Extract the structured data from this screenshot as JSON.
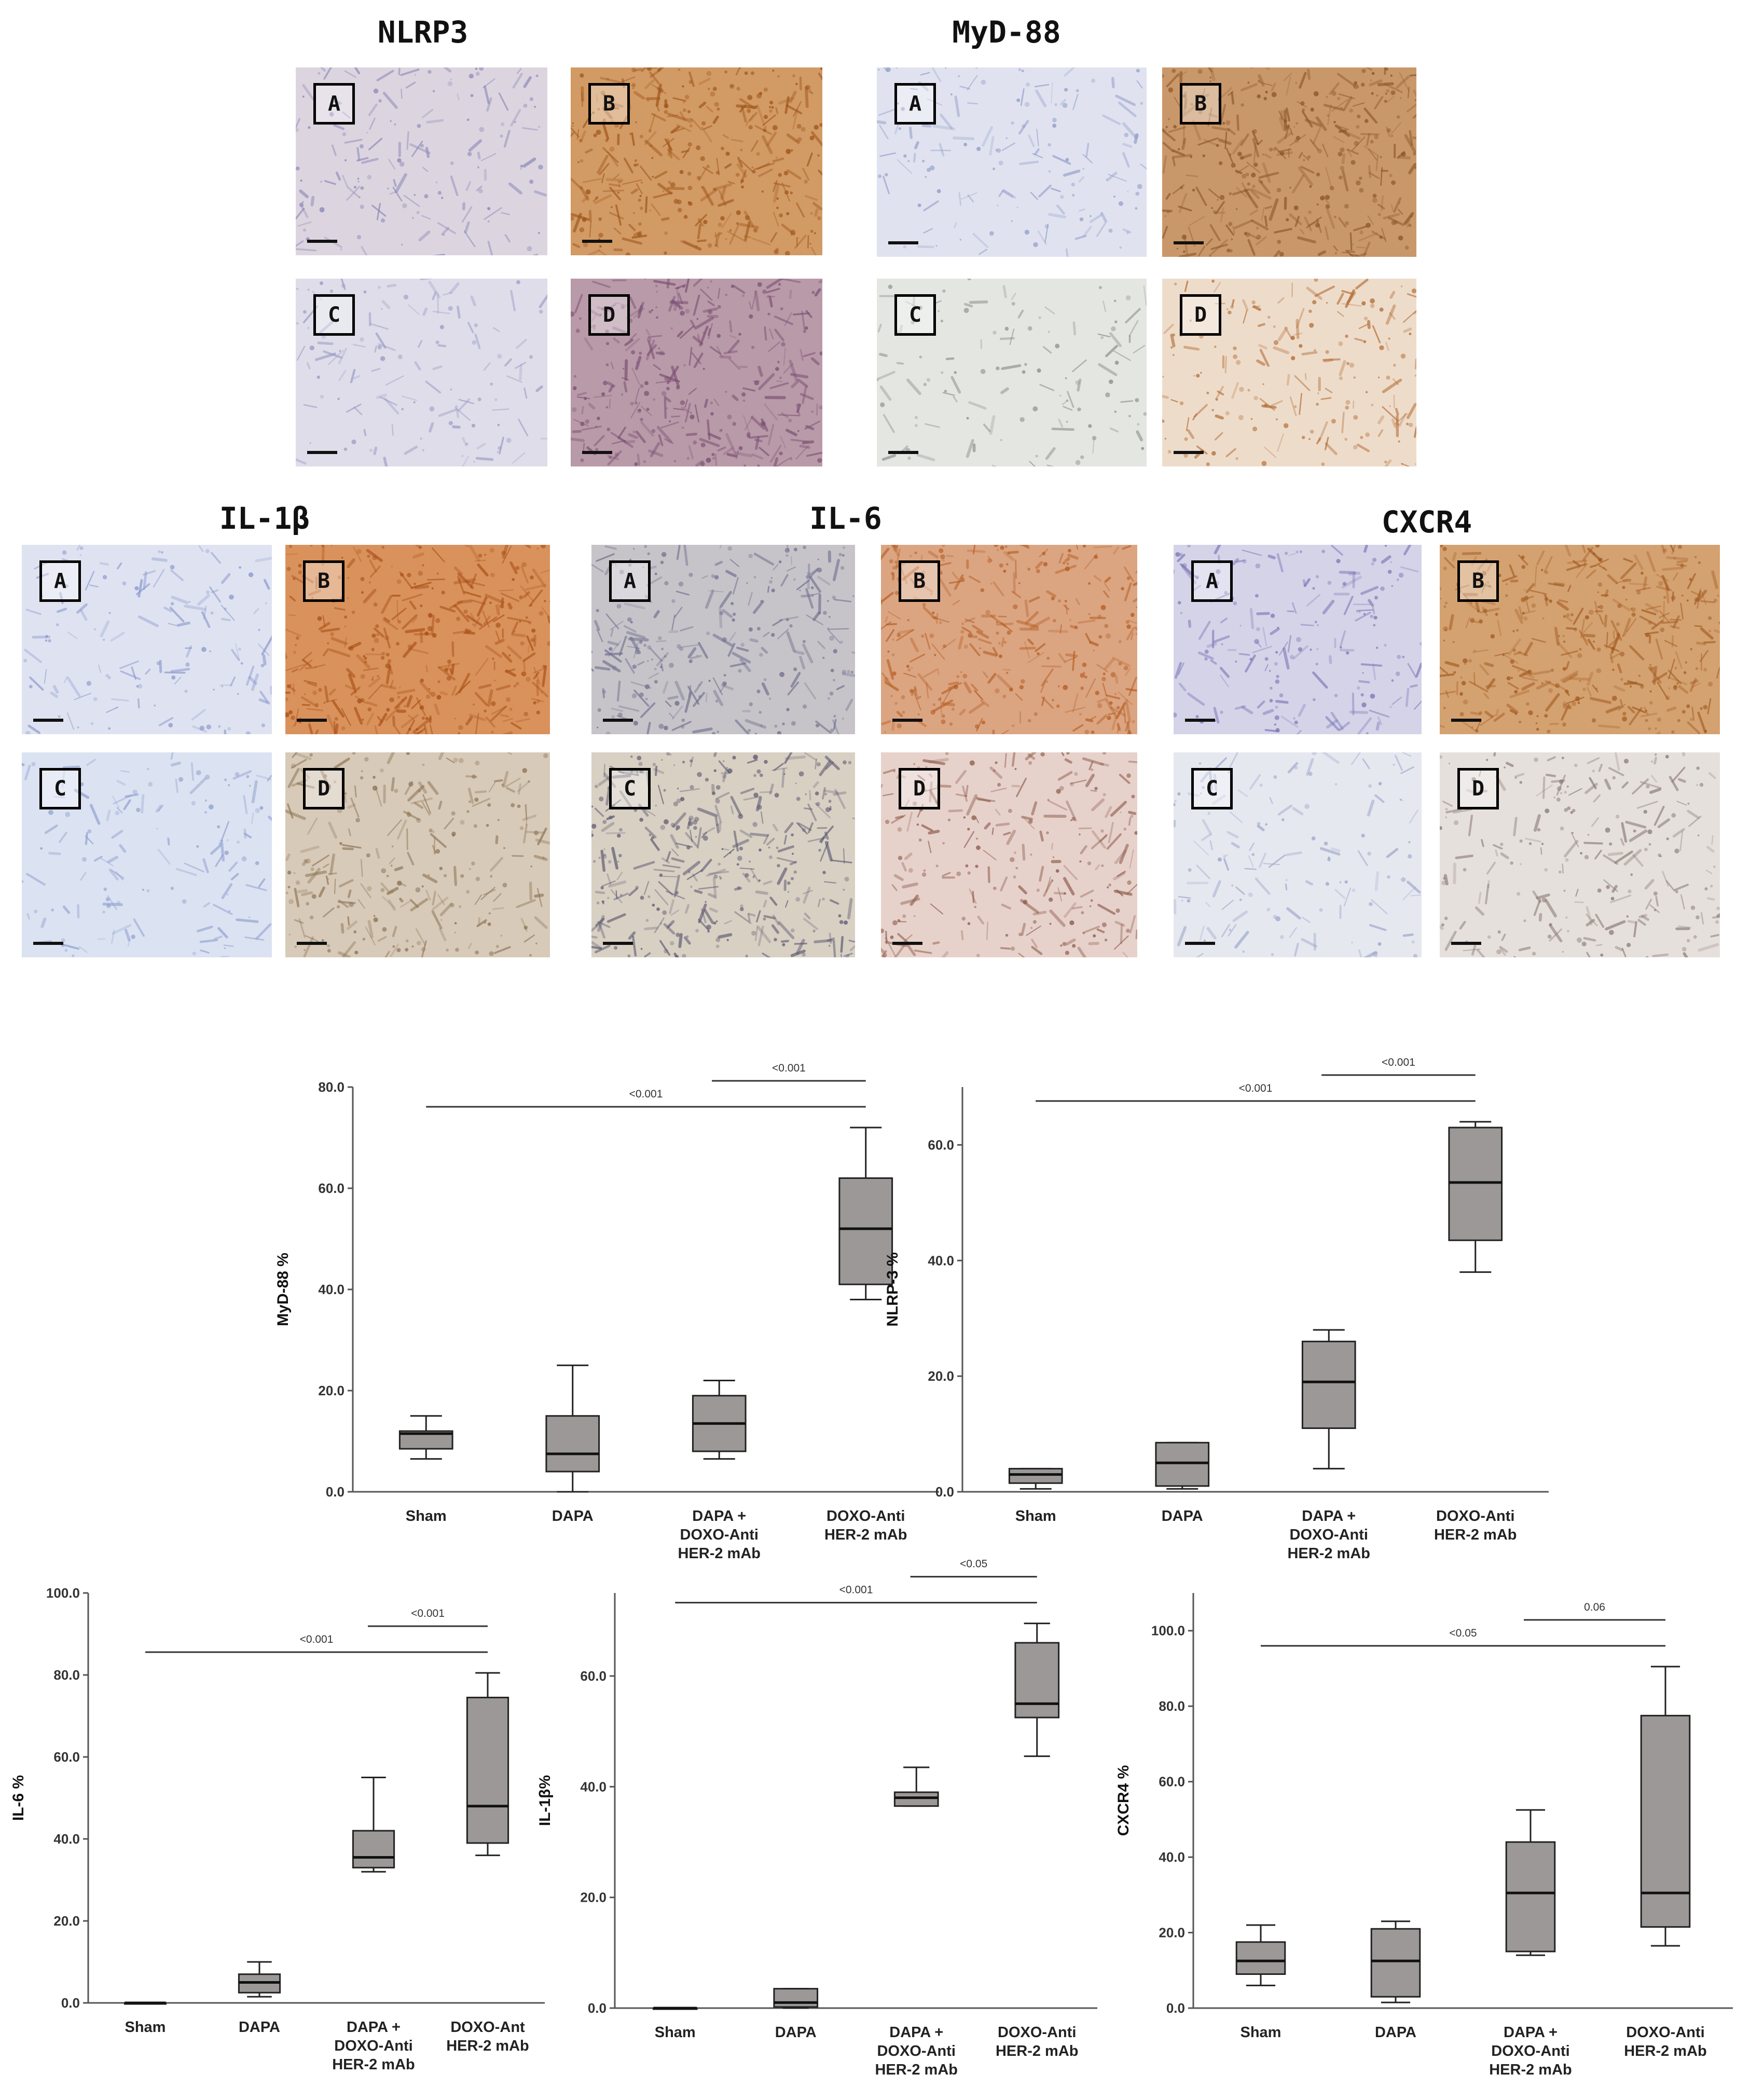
{
  "micrographs": [
    {
      "title": "NLRP3",
      "panels": [
        {
          "label": "A",
          "stain": "#8a86b8",
          "bg": "#dcd5df",
          "dens": 0.25
        },
        {
          "label": "B",
          "stain": "#9c5418",
          "bg": "#d29a64",
          "dens": 0.55
        },
        {
          "label": "C",
          "stain": "#9898c4",
          "bg": "#dedde9",
          "dens": 0.2
        },
        {
          "label": "D",
          "stain": "#7a4f73",
          "bg": "#b99aa8",
          "dens": 0.5
        }
      ]
    },
    {
      "title": "MyD-88",
      "panels": [
        {
          "label": "A",
          "stain": "#8f9ac8",
          "bg": "#e0e3ef",
          "dens": 0.22
        },
        {
          "label": "B",
          "stain": "#8b5628",
          "bg": "#c9986a",
          "dens": 0.55
        },
        {
          "label": "C",
          "stain": "#8a8c86",
          "bg": "#e4e6e2",
          "dens": 0.18
        },
        {
          "label": "D",
          "stain": "#b06a30",
          "bg": "#eedccb",
          "dens": 0.3
        }
      ]
    },
    {
      "title": "IL-1β",
      "panels": [
        {
          "label": "A",
          "stain": "#8a98cc",
          "bg": "#dfe3f1",
          "dens": 0.22
        },
        {
          "label": "B",
          "stain": "#a84f16",
          "bg": "#d9925c",
          "dens": 0.55
        },
        {
          "label": "C",
          "stain": "#8b9ccd",
          "bg": "#dbe2f1",
          "dens": 0.2
        },
        {
          "label": "D",
          "stain": "#8d7355",
          "bg": "#d7cab8",
          "dens": 0.35
        }
      ]
    },
    {
      "title": "IL-6",
      "panels": [
        {
          "label": "A",
          "stain": "#6e6f8e",
          "bg": "#c7c4c9",
          "dens": 0.4
        },
        {
          "label": "B",
          "stain": "#b55d22",
          "bg": "#dba582",
          "dens": 0.5
        },
        {
          "label": "C",
          "stain": "#5a5872",
          "bg": "#d8d0c2",
          "dens": 0.5
        },
        {
          "label": "D",
          "stain": "#8c5a4a",
          "bg": "#e7d2cb",
          "dens": 0.35
        }
      ]
    },
    {
      "title": "CXCR4",
      "panels": [
        {
          "label": "A",
          "stain": "#7b78b6",
          "bg": "#d5d3e8",
          "dens": 0.3
        },
        {
          "label": "B",
          "stain": "#a25a22",
          "bg": "#d4a270",
          "dens": 0.55
        },
        {
          "label": "C",
          "stain": "#9aa4c7",
          "bg": "#e6e8f0",
          "dens": 0.2
        },
        {
          "label": "D",
          "stain": "#8a7a74",
          "bg": "#e6e0dd",
          "dens": 0.3
        }
      ]
    }
  ],
  "chart_data": [
    {
      "type": "box",
      "ylabel": "MyD-88 %",
      "ylim": [
        0,
        80
      ],
      "yticks": [
        "0.0",
        "20.0",
        "40.0",
        "60.0",
        "80.0"
      ],
      "tick_values": [
        0,
        20,
        40,
        60,
        80
      ],
      "categories": [
        "Sham",
        "DAPA",
        "DAPA +\nDOXO-Anti\nHER-2 mAb",
        "DOXO-Anti\nHER-2 mAb"
      ],
      "boxes": [
        {
          "min": 6.5,
          "q1": 8.5,
          "median": 11.5,
          "q3": 12,
          "max": 15
        },
        {
          "min": 0,
          "q1": 4,
          "median": 7.5,
          "q3": 15,
          "max": 25
        },
        {
          "min": 6.5,
          "q1": 8,
          "median": 13.5,
          "q3": 19,
          "max": 22
        },
        {
          "min": 38,
          "q1": 41,
          "median": 52,
          "q3": 62,
          "max": 72
        }
      ],
      "brackets": [
        {
          "from": 0,
          "to": 3,
          "label": "<0.001",
          "level": 0
        },
        {
          "from": 2,
          "to": 3,
          "label": "<0.001",
          "level": 1
        }
      ]
    },
    {
      "type": "box",
      "ylabel": "NLRP-3 %",
      "ylim": [
        0,
        70
      ],
      "yticks": [
        "0.0",
        "20.0",
        "40.0",
        "60.0"
      ],
      "tick_values": [
        0,
        20,
        40,
        60
      ],
      "categories": [
        "Sham",
        "DAPA",
        "DAPA +\nDOXO-Anti\nHER-2 mAb",
        "DOXO-Anti\nHER-2 mAb"
      ],
      "boxes": [
        {
          "min": 0.5,
          "q1": 1.5,
          "median": 3,
          "q3": 4,
          "max": 4
        },
        {
          "min": 0.5,
          "q1": 1,
          "median": 5,
          "q3": 8.5,
          "max": 8.5
        },
        {
          "min": 4,
          "q1": 11,
          "median": 19,
          "q3": 26,
          "max": 28
        },
        {
          "min": 38,
          "q1": 43.5,
          "median": 53.5,
          "q3": 63,
          "max": 64
        }
      ],
      "brackets": [
        {
          "from": 0,
          "to": 3,
          "label": "<0.001",
          "level": 0
        },
        {
          "from": 2,
          "to": 3,
          "label": "<0.001",
          "level": 1
        }
      ]
    },
    {
      "type": "box",
      "ylabel": "IL-6 %",
      "ylim": [
        0,
        100
      ],
      "yticks": [
        "0.0",
        "20.0",
        "40.0",
        "60.0",
        "80.0",
        "100.0"
      ],
      "tick_values": [
        0,
        20,
        40,
        60,
        80,
        100
      ],
      "categories": [
        "Sham",
        "DAPA",
        "DAPA +\nDOXO-Anti\nHER-2 mAb",
        "DOXO-Ant\nHER-2 mAb"
      ],
      "boxes": [
        {
          "min": 0,
          "q1": 0,
          "median": 0,
          "q3": 0,
          "max": 0
        },
        {
          "min": 1.5,
          "q1": 2.5,
          "median": 5,
          "q3": 7,
          "max": 10
        },
        {
          "min": 32,
          "q1": 33,
          "median": 35.5,
          "q3": 42,
          "max": 55
        },
        {
          "min": 36,
          "q1": 39,
          "median": 48,
          "q3": 74.5,
          "max": 80.5
        }
      ],
      "brackets": [
        {
          "from": 0,
          "to": 3,
          "label": "<0.001",
          "level": 0
        },
        {
          "from": 2,
          "to": 3,
          "label": "<0.001",
          "level": 1
        }
      ]
    },
    {
      "type": "box",
      "ylabel": "IL-1β%",
      "ylim": [
        0,
        75
      ],
      "yticks": [
        "0.0",
        "20.0",
        "40.0",
        "60.0"
      ],
      "tick_values": [
        0,
        20,
        40,
        60
      ],
      "categories": [
        "Sham",
        "DAPA",
        "DAPA +\nDOXO-Anti\nHER-2 mAb",
        "DOXO-Anti\nHER-2 mAb"
      ],
      "boxes": [
        {
          "min": 0,
          "q1": 0,
          "median": 0,
          "q3": 0,
          "max": 0
        },
        {
          "min": 0,
          "q1": 0.2,
          "median": 1,
          "q3": 3.5,
          "max": 3.5
        },
        {
          "min": 36.5,
          "q1": 36.5,
          "median": 38,
          "q3": 39,
          "max": 43.5
        },
        {
          "min": 45.5,
          "q1": 52.5,
          "median": 55,
          "q3": 66,
          "max": 69.5
        }
      ],
      "brackets": [
        {
          "from": 0,
          "to": 3,
          "label": "<0.001",
          "level": 0
        },
        {
          "from": 2,
          "to": 3,
          "label": "<0.05",
          "level": 1
        }
      ]
    },
    {
      "type": "box",
      "ylabel": "CXCR4 %",
      "ylim": [
        0,
        110
      ],
      "yticks": [
        "0.0",
        "20.0",
        "40.0",
        "60.0",
        "80.0",
        "100.0"
      ],
      "tick_values": [
        0,
        20,
        40,
        60,
        80,
        100
      ],
      "categories": [
        "Sham",
        "DAPA",
        "DAPA +\nDOXO-Anti\nHER-2 mAb",
        "DOXO-Anti\nHER-2 mAb"
      ],
      "boxes": [
        {
          "min": 6,
          "q1": 9,
          "median": 12.5,
          "q3": 17.5,
          "max": 22
        },
        {
          "min": 1.5,
          "q1": 3,
          "median": 12.5,
          "q3": 21,
          "max": 23
        },
        {
          "min": 14,
          "q1": 15,
          "median": 30.5,
          "q3": 44,
          "max": 52.5
        },
        {
          "min": 16.5,
          "q1": 21.5,
          "median": 30.5,
          "q3": 77.5,
          "max": 90.5
        }
      ],
      "brackets": [
        {
          "from": 0,
          "to": 3,
          "label": "<0.05",
          "level": 0
        },
        {
          "from": 2,
          "to": 3,
          "label": "0.06",
          "level": 1
        }
      ]
    }
  ]
}
